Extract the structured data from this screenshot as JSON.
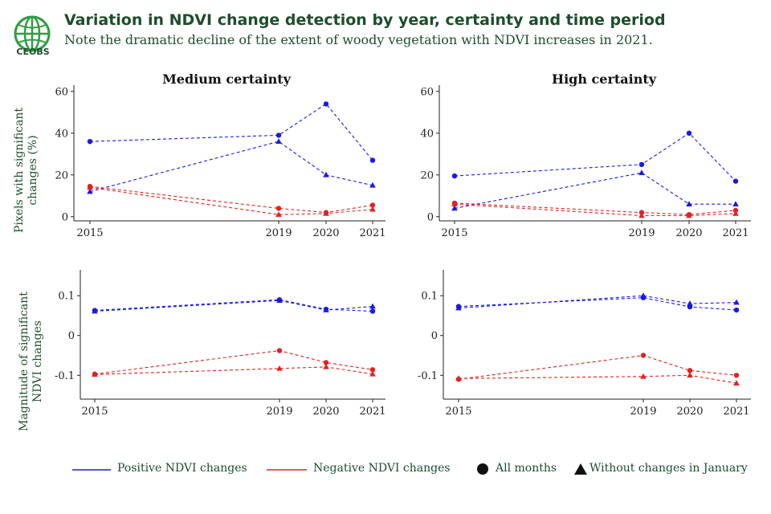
{
  "header": {
    "logo_text": "CEOBS",
    "title": "Variation in NDVI change detection by year, certainty and time period",
    "subtitle": "Note the dramatic decline of the extent of woody vegetation with NDVI increases in 2021."
  },
  "colors": {
    "positive": "#1a1ae6",
    "negative": "#e62020",
    "text": "#1e4d2b",
    "axis": "#222222"
  },
  "legend": {
    "positive_label": "Positive NDVI changes",
    "negative_label": "Negative NDVI changes",
    "all_months_label": "All months",
    "without_january_label": "Without changes in January"
  },
  "chart_data": [
    {
      "type": "line",
      "panel": "top-left",
      "title": "Medium certainty",
      "ylabel": "Pixels with significant changes (%)",
      "x": [
        2015,
        2019,
        2020,
        2021
      ],
      "xtick_labels": [
        "2015",
        "2019",
        "2020",
        "2021"
      ],
      "ylim": [
        -2,
        63
      ],
      "yticks": [
        0,
        20,
        40,
        60
      ],
      "ytick_labels": [
        "0",
        "20",
        "40",
        "60"
      ],
      "series": [
        {
          "name": "Positive NDVI changes - All months",
          "sign": "positive",
          "marker": "circle",
          "values": [
            36,
            39,
            54,
            27
          ]
        },
        {
          "name": "Positive NDVI changes - Without changes in January",
          "sign": "positive",
          "marker": "triangle",
          "values": [
            12,
            36,
            20,
            15
          ]
        },
        {
          "name": "Negative NDVI changes - All months",
          "sign": "negative",
          "marker": "circle",
          "values": [
            14.5,
            4,
            2,
            5.5
          ]
        },
        {
          "name": "Negative NDVI changes - Without changes in January",
          "sign": "negative",
          "marker": "triangle",
          "values": [
            14,
            1,
            1.5,
            3.5
          ]
        }
      ]
    },
    {
      "type": "line",
      "panel": "top-right",
      "title": "High certainty",
      "ylabel": "",
      "x": [
        2015,
        2019,
        2020,
        2021
      ],
      "xtick_labels": [
        "2015",
        "2019",
        "2020",
        "2021"
      ],
      "ylim": [
        -2,
        63
      ],
      "yticks": [
        0,
        20,
        40,
        60
      ],
      "ytick_labels": [
        "0",
        "20",
        "40",
        "60"
      ],
      "series": [
        {
          "name": "Positive NDVI changes - All months",
          "sign": "positive",
          "marker": "circle",
          "values": [
            19.5,
            25,
            40,
            17
          ]
        },
        {
          "name": "Positive NDVI changes - Without changes in January",
          "sign": "positive",
          "marker": "triangle",
          "values": [
            4,
            21,
            6,
            6
          ]
        },
        {
          "name": "Negative NDVI changes - All months",
          "sign": "negative",
          "marker": "circle",
          "values": [
            6.5,
            2,
            1,
            3
          ]
        },
        {
          "name": "Negative NDVI changes - Without changes in January",
          "sign": "negative",
          "marker": "triangle",
          "values": [
            6,
            0.5,
            0.5,
            1.5
          ]
        }
      ]
    },
    {
      "type": "line",
      "panel": "bottom-left",
      "title": "",
      "ylabel": "Magnitude of significant NDVI changes",
      "x": [
        2015,
        2019,
        2020,
        2021
      ],
      "xtick_labels": [
        "2015",
        "2019",
        "2020",
        "2021"
      ],
      "ylim": [
        -0.16,
        0.165
      ],
      "yticks": [
        -0.1,
        0,
        0.1
      ],
      "ytick_labels": [
        "-0.1",
        "0",
        "0.1"
      ],
      "series": [
        {
          "name": "Positive NDVI changes - All months",
          "sign": "positive",
          "marker": "circle",
          "values": [
            0.063,
            0.09,
            0.066,
            0.061
          ]
        },
        {
          "name": "Positive NDVI changes - Without changes in January",
          "sign": "positive",
          "marker": "triangle",
          "values": [
            0.061,
            0.088,
            0.064,
            0.073
          ]
        },
        {
          "name": "Negative NDVI changes - All months",
          "sign": "negative",
          "marker": "circle",
          "values": [
            -0.097,
            -0.038,
            -0.068,
            -0.086
          ]
        },
        {
          "name": "Negative NDVI changes - Without changes in January",
          "sign": "negative",
          "marker": "triangle",
          "values": [
            -0.098,
            -0.083,
            -0.079,
            -0.097
          ]
        }
      ]
    },
    {
      "type": "line",
      "panel": "bottom-right",
      "title": "",
      "ylabel": "",
      "x": [
        2015,
        2019,
        2020,
        2021
      ],
      "xtick_labels": [
        "2015",
        "2019",
        "2020",
        "2021"
      ],
      "ylim": [
        -0.16,
        0.165
      ],
      "yticks": [
        -0.1,
        0,
        0.1
      ],
      "ytick_labels": [
        "-0.1",
        "0",
        "0.1"
      ],
      "series": [
        {
          "name": "Positive NDVI changes - All months",
          "sign": "positive",
          "marker": "circle",
          "values": [
            0.073,
            0.095,
            0.072,
            0.064
          ]
        },
        {
          "name": "Positive NDVI changes - Without changes in January",
          "sign": "positive",
          "marker": "triangle",
          "values": [
            0.069,
            0.1,
            0.08,
            0.083
          ]
        },
        {
          "name": "Negative NDVI changes - All months",
          "sign": "negative",
          "marker": "circle",
          "values": [
            -0.11,
            -0.05,
            -0.088,
            -0.1
          ]
        },
        {
          "name": "Negative NDVI changes - Without changes in January",
          "sign": "negative",
          "marker": "triangle",
          "values": [
            -0.108,
            -0.103,
            -0.1,
            -0.12
          ]
        }
      ]
    }
  ]
}
